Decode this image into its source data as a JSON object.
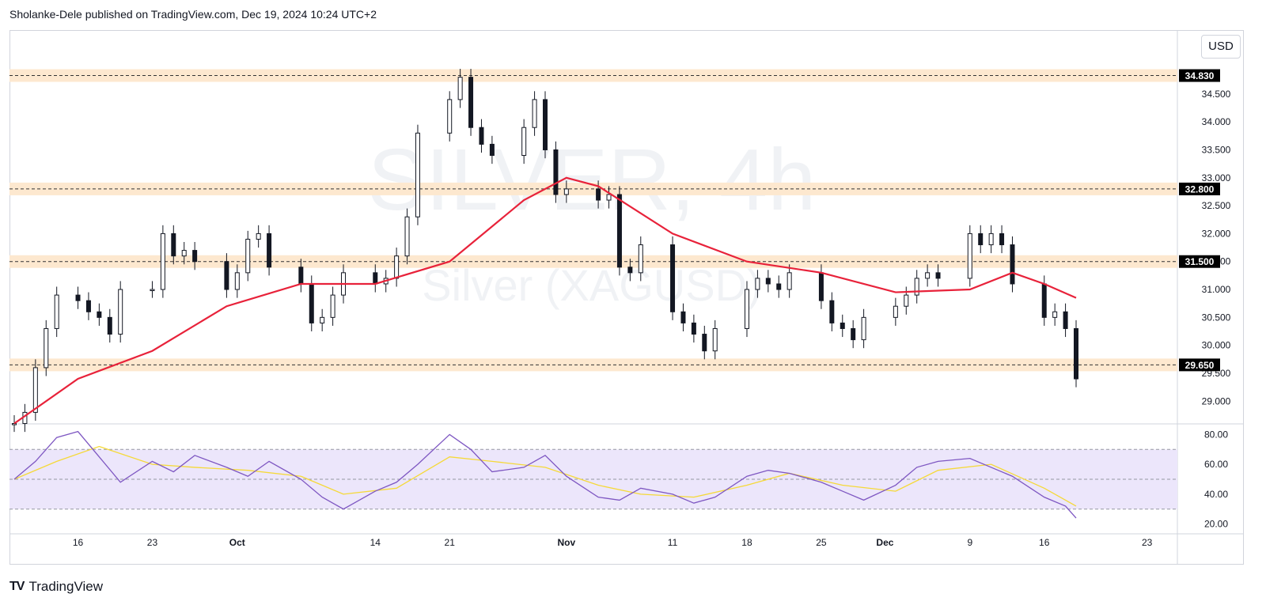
{
  "header": {
    "publisher_text": "Sholanke-Dele published on TradingView.com, Dec 19, 2024 10:24 UTC+2"
  },
  "currency": "USD",
  "watermark": {
    "line1": "SILVER, 4h",
    "line2": "Silver (XAGUSD)"
  },
  "footer": {
    "brand": "TradingView"
  },
  "colors": {
    "ma_line": "#e8223a",
    "sr_band": "#fde8cf",
    "candle": "#131722",
    "rsi_line": "#7e57c2",
    "rsi_signal": "#f5d938",
    "rsi_band": "#ece6fb",
    "label_bg": "#000000"
  },
  "chart_data": [
    {
      "type": "candlestick",
      "symbol": "Silver (XAGUSD)",
      "timeframe": "4h",
      "x_ticks": [
        "16",
        "23",
        "Oct",
        "14",
        "21",
        "Nov",
        "11",
        "18",
        "25",
        "Dec",
        "9",
        "16",
        "23"
      ],
      "y_ticks": [
        29.0,
        29.5,
        30.0,
        30.5,
        31.0,
        31.5,
        32.0,
        32.5,
        33.0,
        33.5,
        34.0,
        34.5
      ],
      "ylim": [
        28.65,
        35.05
      ],
      "price_labels": [
        "34.830",
        "32.800",
        "31.500",
        "29.650"
      ],
      "horizontal_levels": [
        34.83,
        32.8,
        31.5,
        29.65
      ],
      "series": [
        {
          "name": "close",
          "x": [
            "Sep 10",
            "Sep 11",
            "Sep 12",
            "Sep 13",
            "Sep 14",
            "Sep 16",
            "Sep 17",
            "Sep 18",
            "Sep 19",
            "Sep 20",
            "Sep 23",
            "Sep 24",
            "Sep 25",
            "Sep 26",
            "Sep 27",
            "Sep 30",
            "Oct 1",
            "Oct 2",
            "Oct 3",
            "Oct 4",
            "Oct 7",
            "Oct 8",
            "Oct 9",
            "Oct 10",
            "Oct 11",
            "Oct 14",
            "Oct 15",
            "Oct 16",
            "Oct 17",
            "Oct 18",
            "Oct 21",
            "Oct 22",
            "Oct 23",
            "Oct 24",
            "Oct 25",
            "Oct 28",
            "Oct 29",
            "Oct 30",
            "Oct 31",
            "Nov 1",
            "Nov 4",
            "Nov 5",
            "Nov 6",
            "Nov 7",
            "Nov 8",
            "Nov 11",
            "Nov 12",
            "Nov 13",
            "Nov 14",
            "Nov 15",
            "Nov 18",
            "Nov 19",
            "Nov 20",
            "Nov 21",
            "Nov 22",
            "Nov 25",
            "Nov 26",
            "Nov 27",
            "Nov 28",
            "Nov 29",
            "Dec 2",
            "Dec 3",
            "Dec 4",
            "Dec 5",
            "Dec 6",
            "Dec 9",
            "Dec 10",
            "Dec 11",
            "Dec 12",
            "Dec 13",
            "Dec 16",
            "Dec 17",
            "Dec 18",
            "Dec 19"
          ],
          "values": [
            28.6,
            28.8,
            29.6,
            30.3,
            30.9,
            30.8,
            30.6,
            30.5,
            30.2,
            31.0,
            31.0,
            32.0,
            31.6,
            31.7,
            31.5,
            31.0,
            31.3,
            31.9,
            32.0,
            31.4,
            31.1,
            30.4,
            30.5,
            30.9,
            31.3,
            31.1,
            31.2,
            31.6,
            32.3,
            33.8,
            34.4,
            34.8,
            33.9,
            33.6,
            33.4,
            33.9,
            34.4,
            33.5,
            32.7,
            32.8,
            32.6,
            32.7,
            31.4,
            31.3,
            31.8,
            30.6,
            30.4,
            30.2,
            29.9,
            30.3,
            31.0,
            31.2,
            31.1,
            31.0,
            31.3,
            30.8,
            30.4,
            30.3,
            30.1,
            30.5,
            30.7,
            30.9,
            31.2,
            31.3,
            31.2,
            32.0,
            31.8,
            32.0,
            31.8,
            31.1,
            30.5,
            30.6,
            30.3,
            29.4
          ]
        },
        {
          "name": "moving_average",
          "x": [
            "Sep 10",
            "Sep 16",
            "Sep 23",
            "Sep 30",
            "Oct 7",
            "Oct 14",
            "Oct 21",
            "Oct 28",
            "Nov 1",
            "Nov 4",
            "Nov 11",
            "Nov 18",
            "Nov 25",
            "Dec 2",
            "Dec 9",
            "Dec 13",
            "Dec 16",
            "Dec 19"
          ],
          "values": [
            28.6,
            29.4,
            29.9,
            30.7,
            31.1,
            31.1,
            31.5,
            32.6,
            33.0,
            32.85,
            32.0,
            31.5,
            31.3,
            30.95,
            31.0,
            31.3,
            31.1,
            30.85
          ]
        }
      ]
    },
    {
      "type": "line",
      "indicator": "RSI",
      "y_ticks": [
        20.0,
        40.0,
        60.0,
        80.0
      ],
      "ylim": [
        15,
        85
      ],
      "band": [
        30,
        70
      ],
      "midline": 50,
      "series": [
        {
          "name": "rsi",
          "x": [
            "Sep 10",
            "Sep 12",
            "Sep 14",
            "Sep 16",
            "Sep 18",
            "Sep 20",
            "Sep 23",
            "Sep 25",
            "Sep 27",
            "Sep 30",
            "Oct 2",
            "Oct 4",
            "Oct 7",
            "Oct 9",
            "Oct 11",
            "Oct 14",
            "Oct 16",
            "Oct 18",
            "Oct 21",
            "Oct 23",
            "Oct 25",
            "Oct 28",
            "Oct 30",
            "Nov 1",
            "Nov 4",
            "Nov 6",
            "Nov 8",
            "Nov 11",
            "Nov 13",
            "Nov 15",
            "Nov 18",
            "Nov 20",
            "Nov 22",
            "Nov 25",
            "Nov 27",
            "Nov 29",
            "Dec 2",
            "Dec 4",
            "Dec 6",
            "Dec 9",
            "Dec 11",
            "Dec 13",
            "Dec 16",
            "Dec 18",
            "Dec 19"
          ],
          "values": [
            50,
            62,
            78,
            82,
            65,
            48,
            62,
            55,
            66,
            58,
            52,
            62,
            50,
            38,
            30,
            42,
            48,
            60,
            80,
            70,
            55,
            58,
            66,
            52,
            38,
            36,
            44,
            40,
            34,
            38,
            52,
            56,
            54,
            48,
            42,
            36,
            46,
            58,
            62,
            64,
            58,
            52,
            38,
            32,
            24
          ]
        },
        {
          "name": "rsi_signal",
          "x": [
            "Sep 10",
            "Sep 14",
            "Sep 18",
            "Sep 23",
            "Sep 27",
            "Oct 2",
            "Oct 7",
            "Oct 11",
            "Oct 16",
            "Oct 21",
            "Oct 25",
            "Oct 30",
            "Nov 4",
            "Nov 8",
            "Nov 13",
            "Nov 18",
            "Nov 22",
            "Nov 27",
            "Dec 2",
            "Dec 6",
            "Dec 11",
            "Dec 16",
            "Dec 19"
          ],
          "values": [
            50,
            62,
            72,
            60,
            58,
            56,
            52,
            40,
            44,
            65,
            62,
            58,
            46,
            40,
            38,
            46,
            54,
            46,
            42,
            56,
            60,
            44,
            32
          ]
        }
      ]
    }
  ]
}
